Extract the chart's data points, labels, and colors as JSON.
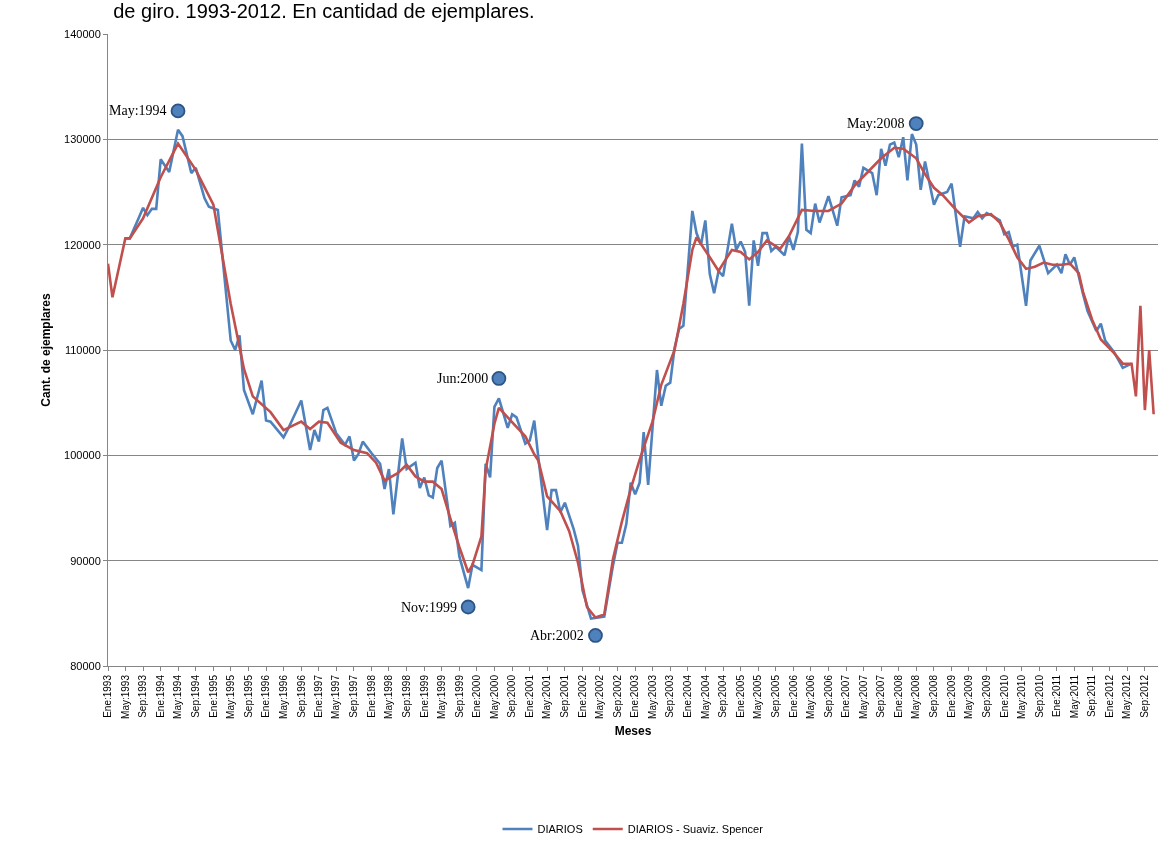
{
  "chart_data": {
    "type": "line",
    "title": "de giro. 1993-2012. En cantidad de ejemplares.",
    "xlabel": "Meses",
    "ylabel": "Cant. de ejemplares",
    "xlim": [
      "1993-01",
      "2012-12"
    ],
    "xticks": [
      {
        "value": "1993-01",
        "label": "Ene:1993"
      },
      {
        "value": "1993-05",
        "label": "May:1993"
      },
      {
        "value": "1993-09",
        "label": "Sep:1993"
      },
      {
        "value": "1994-01",
        "label": "Ene:1994"
      },
      {
        "value": "1994-05",
        "label": "May:1994"
      },
      {
        "value": "1994-09",
        "label": "Sep:1994"
      },
      {
        "value": "1995-01",
        "label": "Ene:1995"
      },
      {
        "value": "1995-05",
        "label": "May:1995"
      },
      {
        "value": "1995-09",
        "label": "Sep:1995"
      },
      {
        "value": "1996-01",
        "label": "Ene:1996"
      },
      {
        "value": "1996-05",
        "label": "May:1996"
      },
      {
        "value": "1996-09",
        "label": "Sep:1996"
      },
      {
        "value": "1997-01",
        "label": "Ene:1997"
      },
      {
        "value": "1997-05",
        "label": "May:1997"
      },
      {
        "value": "1997-09",
        "label": "Sep:1997"
      },
      {
        "value": "1998-01",
        "label": "Ene:1998"
      },
      {
        "value": "1998-05",
        "label": "May:1998"
      },
      {
        "value": "1998-09",
        "label": "Sep:1998"
      },
      {
        "value": "1999-01",
        "label": "Ene:1999"
      },
      {
        "value": "1999-05",
        "label": "May:1999"
      },
      {
        "value": "1999-09",
        "label": "Sep:1999"
      },
      {
        "value": "2000-01",
        "label": "Ene:2000"
      },
      {
        "value": "2000-05",
        "label": "May:2000"
      },
      {
        "value": "2000-09",
        "label": "Sep:2000"
      },
      {
        "value": "2001-01",
        "label": "Ene:2001"
      },
      {
        "value": "2001-05",
        "label": "May:2001"
      },
      {
        "value": "2001-09",
        "label": "Sep:2001"
      },
      {
        "value": "2002-01",
        "label": "Ene:2002"
      },
      {
        "value": "2002-05",
        "label": "May:2002"
      },
      {
        "value": "2002-09",
        "label": "Sep:2002"
      },
      {
        "value": "2003-01",
        "label": "Ene:2003"
      },
      {
        "value": "2003-05",
        "label": "May:2003"
      },
      {
        "value": "2003-09",
        "label": "Sep:2003"
      },
      {
        "value": "2004-01",
        "label": "Ene:2004"
      },
      {
        "value": "2004-05",
        "label": "May:2004"
      },
      {
        "value": "2004-09",
        "label": "Sep:2004"
      },
      {
        "value": "2005-01",
        "label": "Ene:2005"
      },
      {
        "value": "2005-05",
        "label": "May:2005"
      },
      {
        "value": "2005-09",
        "label": "Sep:2005"
      },
      {
        "value": "2006-01",
        "label": "Ene:2006"
      },
      {
        "value": "2006-05",
        "label": "May:2006"
      },
      {
        "value": "2006-09",
        "label": "Sep:2006"
      },
      {
        "value": "2007-01",
        "label": "Ene:2007"
      },
      {
        "value": "2007-05",
        "label": "May:2007"
      },
      {
        "value": "2007-09",
        "label": "Sep:2007"
      },
      {
        "value": "2008-01",
        "label": "Ene:2008"
      },
      {
        "value": "2008-05",
        "label": "May:2008"
      },
      {
        "value": "2008-09",
        "label": "Sep:2008"
      },
      {
        "value": "2009-01",
        "label": "Ene:2009"
      },
      {
        "value": "2009-05",
        "label": "May:2009"
      },
      {
        "value": "2009-09",
        "label": "Sep:2009"
      },
      {
        "value": "2010-01",
        "label": "Ene:2010"
      },
      {
        "value": "2010-05",
        "label": "May:2010"
      },
      {
        "value": "2010-09",
        "label": "Sep:2010"
      },
      {
        "value": "2011-01",
        "label": "Ene:2011"
      },
      {
        "value": "2011-05",
        "label": "May:2011"
      },
      {
        "value": "2011-09",
        "label": "Sep:2011"
      },
      {
        "value": "2012-01",
        "label": "Ene:2012"
      },
      {
        "value": "2012-05",
        "label": "May:2012"
      },
      {
        "value": "2012-09",
        "label": "Sep:2012"
      }
    ],
    "ylim": [
      80000,
      140000
    ],
    "yticks": [
      80000,
      90000,
      100000,
      110000,
      120000,
      130000,
      140000
    ],
    "grid": "y",
    "legend": "bottom",
    "line_style": "solid",
    "series": [
      {
        "name": "DIARIOS",
        "color": "#4f81bd",
        "marker": "none",
        "x": [
          "1993-05",
          "1993-06",
          "1993-08",
          "1993-09",
          "1993-10",
          "1993-11",
          "1993-12",
          "1994-01",
          "1994-03",
          "1994-05",
          "1994-06",
          "1994-08",
          "1994-09",
          "1994-11",
          "1994-12",
          "1995-02",
          "1995-05",
          "1995-06",
          "1995-07",
          "1995-08",
          "1995-10",
          "1995-12",
          "1996-01",
          "1996-02",
          "1996-05",
          "1996-06",
          "1996-09",
          "1996-11",
          "1996-12",
          "1997-01",
          "1997-02",
          "1997-03",
          "1997-05",
          "1997-07",
          "1997-08",
          "1997-09",
          "1997-10",
          "1997-11",
          "1998-01",
          "1998-03",
          "1998-04",
          "1998-05",
          "1998-06",
          "1998-08",
          "1998-09",
          "1998-11",
          "1998-12",
          "1999-01",
          "1999-02",
          "1999-03",
          "1999-04",
          "1999-05",
          "1999-07",
          "1999-08",
          "1999-09",
          "1999-11",
          "1999-12",
          "2000-02",
          "2000-03",
          "2000-04",
          "2000-05",
          "2000-06",
          "2000-08",
          "2000-09",
          "2000-10",
          "2000-12",
          "2001-01",
          "2001-02",
          "2001-03",
          "2001-05",
          "2001-06",
          "2001-07",
          "2001-08",
          "2001-09",
          "2001-11",
          "2001-12",
          "2002-01",
          "2002-03",
          "2002-06",
          "2002-08",
          "2002-09",
          "2002-10",
          "2002-11",
          "2002-12",
          "2003-01",
          "2003-02",
          "2003-03",
          "2003-04",
          "2003-06",
          "2003-07",
          "2003-08",
          "2003-09",
          "2003-10",
          "2003-11",
          "2003-12",
          "2004-02",
          "2004-03",
          "2004-04",
          "2004-05",
          "2004-06",
          "2004-07",
          "2004-08",
          "2004-09",
          "2004-11",
          "2004-12",
          "2005-01",
          "2005-02",
          "2005-03",
          "2005-04",
          "2005-05",
          "2005-06",
          "2005-07",
          "2005-08",
          "2005-09",
          "2005-11",
          "2005-12",
          "2006-01",
          "2006-02",
          "2006-03",
          "2006-04",
          "2006-05",
          "2006-06",
          "2006-07",
          "2006-09",
          "2006-11",
          "2006-12",
          "2007-02",
          "2007-03",
          "2007-04",
          "2007-05",
          "2007-07",
          "2007-08",
          "2007-09",
          "2007-10",
          "2007-11",
          "2007-12",
          "2008-01",
          "2008-02",
          "2008-03",
          "2008-04",
          "2008-05",
          "2008-06",
          "2008-07",
          "2008-09",
          "2008-10",
          "2008-12",
          "2009-01",
          "2009-03",
          "2009-04",
          "2009-06",
          "2009-07",
          "2009-08",
          "2009-09",
          "2009-10",
          "2009-12",
          "2010-01",
          "2010-02",
          "2010-03",
          "2010-04",
          "2010-06",
          "2010-07",
          "2010-09",
          "2010-11",
          "2011-01",
          "2011-02",
          "2011-03",
          "2011-04",
          "2011-05",
          "2011-07",
          "2011-08",
          "2011-10",
          "2011-11",
          "2011-12",
          "2012-02",
          "2012-04",
          "2012-06"
        ],
        "values": [
          120600,
          120600,
          122500,
          123500,
          122800,
          123400,
          123400,
          128100,
          126900,
          130900,
          130300,
          126800,
          127300,
          124400,
          123600,
          123300,
          110900,
          110000,
          111400,
          106200,
          103900,
          107100,
          103300,
          103200,
          101700,
          102500,
          105200,
          100500,
          102400,
          101300,
          104300,
          104500,
          102100,
          101000,
          101800,
          99500,
          100100,
          101300,
          100200,
          99200,
          96800,
          98700,
          94400,
          101600,
          98700,
          99300,
          96900,
          97900,
          96200,
          96000,
          98800,
          99500,
          93300,
          93600,
          90400,
          87400,
          89600,
          89100,
          99200,
          97900,
          104600,
          105400,
          102600,
          103900,
          103600,
          101100,
          101400,
          103300,
          99800,
          92900,
          96700,
          96700,
          94600,
          95500,
          93000,
          91400,
          87200,
          84500,
          84700,
          89600,
          91700,
          91700,
          93500,
          97400,
          96300,
          97400,
          102200,
          97200,
          108100,
          104700,
          106600,
          106900,
          110200,
          112000,
          112300,
          123200,
          121100,
          120000,
          122300,
          117200,
          115400,
          117500,
          117000,
          122000,
          119500,
          120300,
          119300,
          114200,
          120400,
          118000,
          121100,
          121100,
          119400,
          119800,
          119000,
          120800,
          119500,
          121200,
          129600,
          121400,
          121100,
          123900,
          122100,
          124600,
          121800,
          124500,
          124700,
          126100,
          125500,
          127300,
          126800,
          124700,
          129100,
          127500,
          129500,
          129700,
          128300,
          130200,
          126100,
          130500,
          129500,
          125200,
          127900,
          123800,
          124700,
          125000,
          125800,
          119800,
          122700,
          122500,
          123100,
          122500,
          123000,
          122800,
          122300,
          121000,
          121200,
          119800,
          120000,
          114200,
          118500,
          119900,
          117300,
          118100,
          117300,
          119100,
          118100,
          118800,
          115300,
          113700,
          111800,
          112500,
          110900,
          109800,
          108300,
          108700
        ]
      },
      {
        "name": "DIARIOS - Suaviz. Spencer",
        "color": "#c0504d",
        "marker": "none",
        "x": [
          "1993-01",
          "1993-02",
          "1993-05",
          "1993-06",
          "1993-09",
          "1994-01",
          "1994-05",
          "1994-09",
          "1995-01",
          "1995-05",
          "1995-08",
          "1995-10",
          "1996-02",
          "1996-05",
          "1996-07",
          "1996-09",
          "1996-11",
          "1997-01",
          "1997-03",
          "1997-06",
          "1997-09",
          "1997-12",
          "1998-02",
          "1998-04",
          "1998-07",
          "1998-09",
          "1998-11",
          "1999-01",
          "1999-03",
          "1999-05",
          "1999-07",
          "1999-09",
          "1999-11",
          "1999-12",
          "2000-02",
          "2000-03",
          "2000-05",
          "2000-06",
          "2000-08",
          "2000-10",
          "2000-12",
          "2001-02",
          "2001-03",
          "2001-05",
          "2001-08",
          "2001-10",
          "2001-12",
          "2002-02",
          "2002-04",
          "2002-06",
          "2002-08",
          "2002-10",
          "2002-12",
          "2003-02",
          "2003-05",
          "2003-07",
          "2003-10",
          "2003-12",
          "2004-02",
          "2004-03",
          "2004-06",
          "2004-08",
          "2004-09",
          "2004-11",
          "2005-01",
          "2005-03",
          "2005-05",
          "2005-07",
          "2005-10",
          "2005-12",
          "2006-03",
          "2006-06",
          "2006-09",
          "2006-12",
          "2007-03",
          "2007-06",
          "2007-09",
          "2007-12",
          "2008-02",
          "2008-05",
          "2008-07",
          "2008-09",
          "2008-11",
          "2009-02",
          "2009-05",
          "2009-07",
          "2009-10",
          "2009-12",
          "2010-02",
          "2010-04",
          "2010-06",
          "2010-08",
          "2010-10",
          "2010-12",
          "2011-02",
          "2011-04",
          "2011-06",
          "2011-07",
          "2011-09",
          "2011-11",
          "2012-02",
          "2012-04",
          "2012-06",
          "2012-07",
          "2012-08",
          "2012-09",
          "2012-10",
          "2012-11"
        ],
        "values": [
          118200,
          115000,
          120600,
          120600,
          122500,
          126400,
          129600,
          127100,
          123800,
          114400,
          108200,
          105600,
          104100,
          102400,
          102800,
          103200,
          102500,
          103200,
          103100,
          101200,
          100500,
          100200,
          99300,
          97600,
          98300,
          99100,
          98000,
          97500,
          97500,
          96800,
          94000,
          91300,
          88900,
          89600,
          92300,
          98600,
          103000,
          104500,
          103600,
          102700,
          101800,
          100100,
          99500,
          96100,
          94700,
          92800,
          89800,
          85600,
          84600,
          84900,
          90200,
          93700,
          96800,
          99600,
          103200,
          106700,
          110000,
          114400,
          119500,
          120700,
          118800,
          117500,
          118200,
          119500,
          119300,
          118600,
          119300,
          120400,
          119600,
          120800,
          123300,
          123200,
          123200,
          123900,
          125600,
          126900,
          128200,
          129200,
          129100,
          128200,
          126700,
          125400,
          124700,
          123300,
          122100,
          122700,
          122900,
          122100,
          120500,
          118800,
          117700,
          117900,
          118300,
          118100,
          118100,
          118200,
          117300,
          115500,
          112900,
          111000,
          109700,
          108700,
          108700,
          105600,
          114200,
          104300,
          110000,
          103900
        ]
      },
      {
        "type": "scatter",
        "color": "#4f81bd",
        "marker": "circle",
        "x": [
          "1994-05",
          "1999-11",
          "2000-06",
          "2002-04",
          "2008-05"
        ],
        "values": [
          132700,
          85600,
          107300,
          82900,
          131500
        ]
      }
    ],
    "annotations": [
      {
        "text": "May:1994",
        "x": "1994-05",
        "y": 132700
      },
      {
        "text": "Nov:1999",
        "x": "1999-11",
        "y": 85600
      },
      {
        "text": "Jun:2000",
        "x": "2000-06",
        "y": 107300
      },
      {
        "text": "Abr:2002",
        "x": "2002-04",
        "y": 82900
      },
      {
        "text": "May:2008",
        "x": "2008-05",
        "y": 131500
      }
    ]
  }
}
